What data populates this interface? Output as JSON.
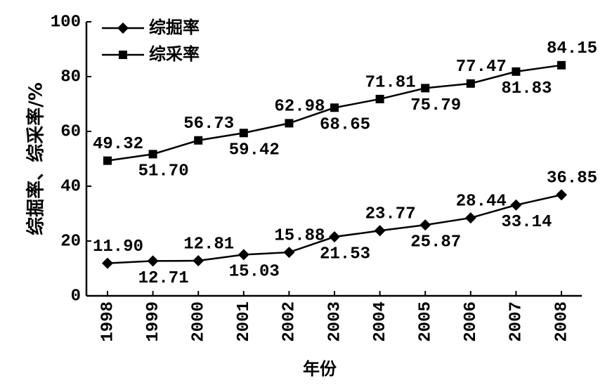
{
  "chart_data": {
    "type": "line",
    "categories": [
      "1998",
      "1999",
      "2000",
      "2001",
      "2002",
      "2003",
      "2004",
      "2005",
      "2006",
      "2007",
      "2008"
    ],
    "series": [
      {
        "name": "综掘率",
        "color": "#000000",
        "marker": "diamond",
        "values": [
          11.9,
          12.71,
          12.81,
          15.03,
          15.88,
          21.53,
          23.77,
          25.87,
          28.44,
          33.14,
          36.85
        ],
        "value_labels": [
          "11.90",
          "12.71",
          "12.81",
          "15.03",
          "15.88",
          "21.53",
          "23.77",
          "25.87",
          "28.44",
          "33.14",
          "36.85"
        ]
      },
      {
        "name": "综采率",
        "color": "#000000",
        "marker": "square",
        "values": [
          49.32,
          51.7,
          56.73,
          59.42,
          62.98,
          68.65,
          71.81,
          75.79,
          77.47,
          81.83,
          84.15
        ],
        "value_labels": [
          "49.32",
          "51.70",
          "56.73",
          "59.42",
          "62.98",
          "68.65",
          "71.81",
          "75.79",
          "77.47",
          "81.83",
          "84.15"
        ]
      }
    ],
    "xlabel": "年份",
    "ylabel": "综掘率、综采率/%",
    "ylim": [
      0,
      100
    ],
    "yticks": [
      0,
      20,
      40,
      60,
      80,
      100
    ],
    "legend": "upper left"
  }
}
